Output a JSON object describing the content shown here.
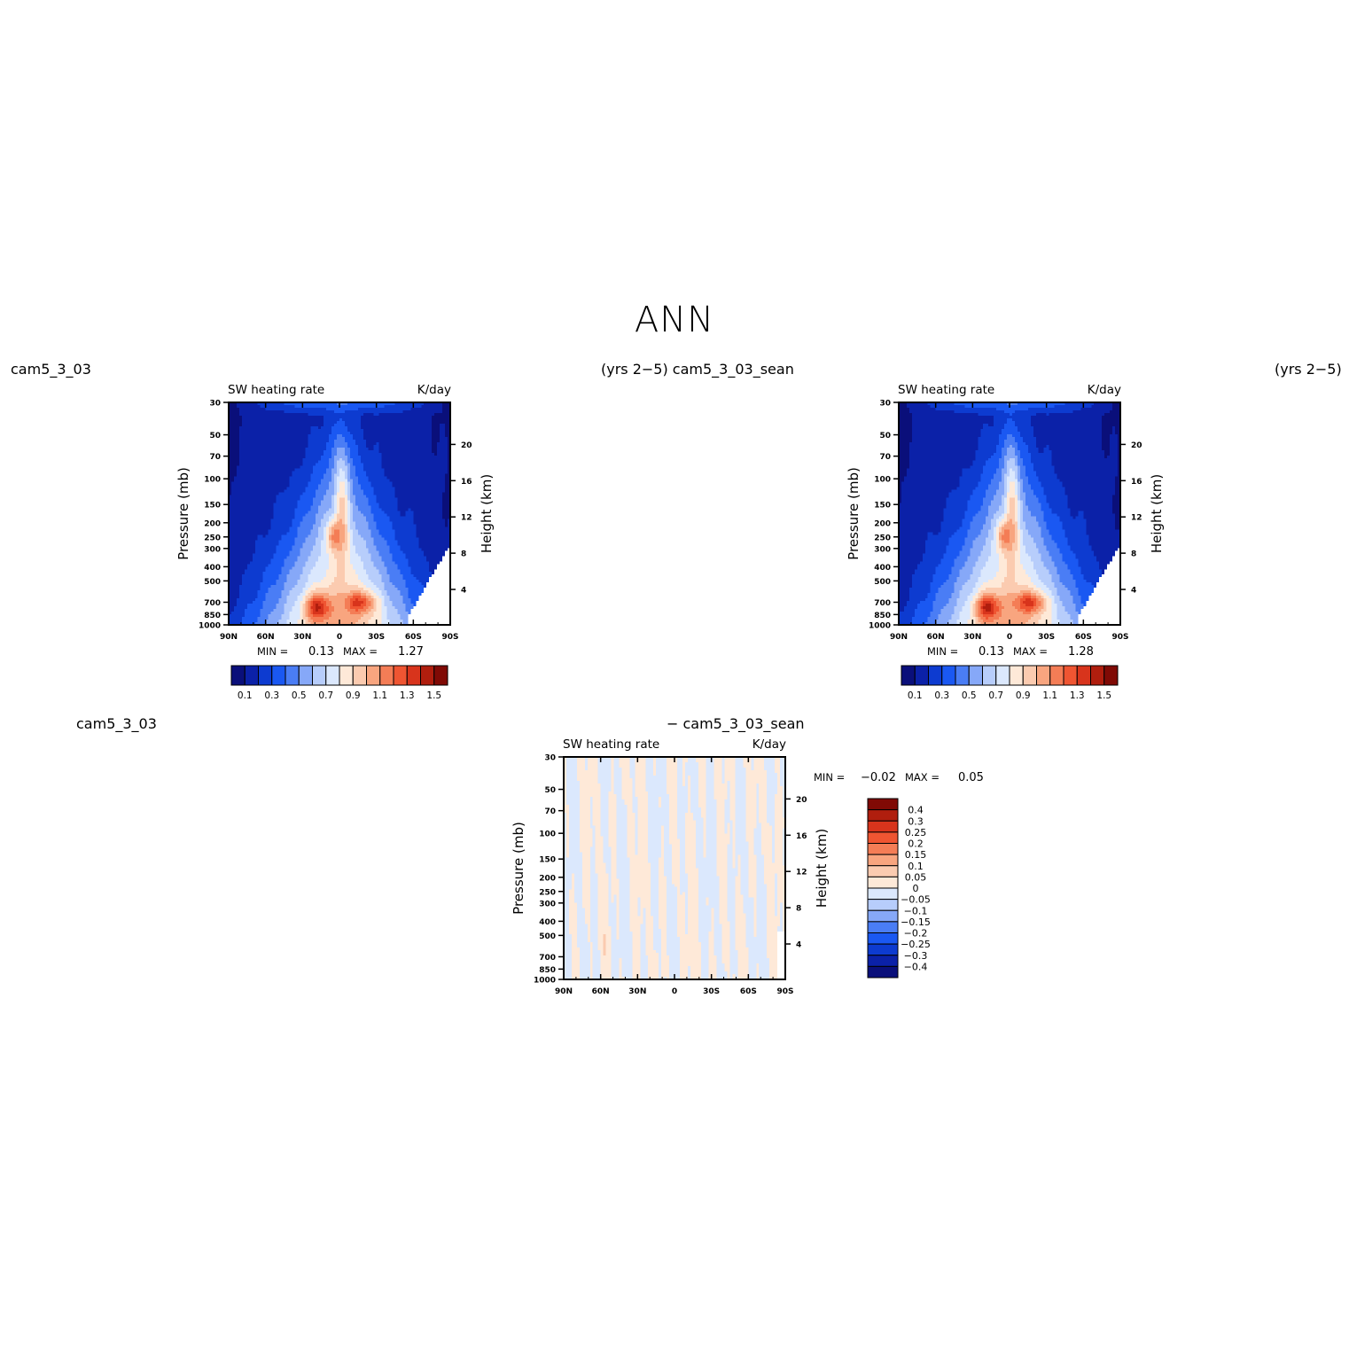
{
  "page": {
    "title": "ANN"
  },
  "labels": {
    "top_left_case": "cam5_3_03",
    "top_mid_case": "(yrs 2−5) cam5_3_03_sean",
    "top_right_case": "(yrs 2−5)",
    "bottom_case": "cam5_3_03",
    "bottom_diff": "− cam5_3_03_sean"
  },
  "chart_data": [
    {
      "type": "heatmap",
      "title": "SW heating rate",
      "units": "K/day",
      "ylabel": "Pressure (mb)",
      "ylabel_right": "Height (km)",
      "x_ticks": [
        "90N",
        "60N",
        "30N",
        "0",
        "30S",
        "60S",
        "90S"
      ],
      "y_ticks": [
        30,
        50,
        70,
        100,
        150,
        200,
        250,
        300,
        400,
        500,
        700,
        850,
        1000
      ],
      "height_ticks": [
        20,
        16,
        12,
        8,
        4
      ],
      "min_label": "MIN =",
      "min": "0.13",
      "max_label": "MAX =",
      "max": "1.27",
      "contour_levels": [
        "0.1",
        "0.3",
        "0.5",
        "0.7",
        "0.9",
        "1.1",
        "1.3",
        "1.5"
      ],
      "colors": [
        "#0a0f7a",
        "#0b21a8",
        "#0d3bd0",
        "#1a58f2",
        "#4a7df5",
        "#86a8f8",
        "#b7cdfb",
        "#dbe8fd",
        "#fee9d8",
        "#fbcbb0",
        "#f8a57f",
        "#f47d56",
        "#ef5532",
        "#d8341c",
        "#b01e0e",
        "#800a05"
      ]
    },
    {
      "type": "heatmap",
      "title": "SW heating rate",
      "units": "K/day",
      "ylabel": "Pressure (mb)",
      "ylabel_right": "Height (km)",
      "x_ticks": [
        "90N",
        "60N",
        "30N",
        "0",
        "30S",
        "60S",
        "90S"
      ],
      "y_ticks": [
        30,
        50,
        70,
        100,
        150,
        200,
        250,
        300,
        400,
        500,
        700,
        850,
        1000
      ],
      "height_ticks": [
        20,
        16,
        12,
        8,
        4
      ],
      "min_label": "MIN =",
      "min": "0.13",
      "max_label": "MAX =",
      "max": "1.28",
      "contour_levels": [
        "0.1",
        "0.3",
        "0.5",
        "0.7",
        "0.9",
        "1.1",
        "1.3",
        "1.5"
      ],
      "colors": [
        "#0a0f7a",
        "#0b21a8",
        "#0d3bd0",
        "#1a58f2",
        "#4a7df5",
        "#86a8f8",
        "#b7cdfb",
        "#dbe8fd",
        "#fee9d8",
        "#fbcbb0",
        "#f8a57f",
        "#f47d56",
        "#ef5532",
        "#d8341c",
        "#b01e0e",
        "#800a05"
      ]
    },
    {
      "type": "heatmap",
      "title": "SW heating rate",
      "units": "K/day",
      "ylabel": "Pressure (mb)",
      "ylabel_right": "Height (km)",
      "x_ticks": [
        "90N",
        "60N",
        "30N",
        "0",
        "30S",
        "60S",
        "90S"
      ],
      "y_ticks": [
        30,
        50,
        70,
        100,
        150,
        200,
        250,
        300,
        400,
        500,
        700,
        850,
        1000
      ],
      "height_ticks": [
        20,
        16,
        12,
        8,
        4
      ],
      "min_label": "MIN =",
      "min": "−0.02",
      "max_label": "MAX =",
      "max": "0.05",
      "contour_levels": [
        "0.4",
        "0.3",
        "0.25",
        "0.2",
        "0.15",
        "0.1",
        "0.05",
        "0",
        "−0.05",
        "−0.1",
        "−0.15",
        "−0.2",
        "−0.25",
        "−0.3",
        "−0.4"
      ],
      "colors": [
        "#800a05",
        "#b01e0e",
        "#d8341c",
        "#ef5532",
        "#f47d56",
        "#f8a57f",
        "#fbcbb0",
        "#fee9d8",
        "#dbe8fd",
        "#b7cdfb",
        "#86a8f8",
        "#4a7df5",
        "#1a58f2",
        "#0d3bd0",
        "#0b21a8",
        "#0a0f7a"
      ]
    }
  ]
}
